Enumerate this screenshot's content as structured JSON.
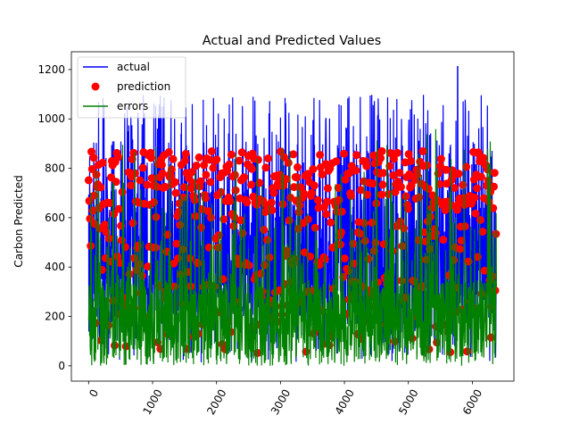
{
  "chart_data": {
    "type": "line",
    "title": "Actual and Predicted Values",
    "xlabel": "",
    "ylabel": "Carbon Predicted",
    "xlim": [
      -270,
      6650
    ],
    "ylim": [
      -62,
      1272
    ],
    "xticks": [
      0,
      1000,
      2000,
      3000,
      4000,
      5000,
      6000
    ],
    "xtick_labels": [
      "0",
      "1000",
      "2000",
      "3000",
      "4000",
      "5000",
      "6000"
    ],
    "yticks": [
      0,
      200,
      400,
      600,
      800,
      1000,
      1200
    ],
    "ytick_labels": [
      "0",
      "200",
      "400",
      "600",
      "800",
      "1000",
      "1200"
    ],
    "xtick_rotation": 60,
    "grid": false,
    "legend_position": "top-left",
    "point_count": 6380,
    "series": [
      {
        "name": "actual",
        "style": "line",
        "color": "#0000ff",
        "stats": {
          "typical_min": 5,
          "typical_max": 1100,
          "peak_x": 5770,
          "peak_y": 1212,
          "dense_band": [
            150,
            750
          ]
        }
      },
      {
        "name": "prediction",
        "style": "markers",
        "color": "#ff0000",
        "stats": {
          "typical_min": 40,
          "typical_max": 870,
          "dense_band": [
            80,
            840
          ]
        }
      },
      {
        "name": "errors",
        "style": "line",
        "color": "#008000",
        "stats": {
          "typical_min": 0,
          "typical_max": 980,
          "dense_band": [
            0,
            350
          ]
        }
      }
    ]
  }
}
